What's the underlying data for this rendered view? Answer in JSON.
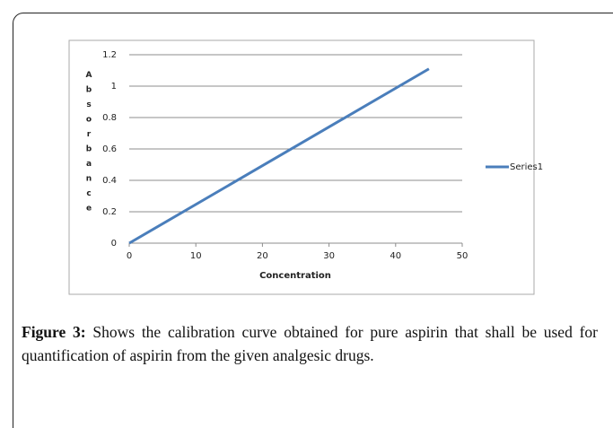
{
  "chart_data": {
    "type": "line",
    "x_label": "Concentration",
    "y_label": "Absorbance",
    "x": [
      0,
      45
    ],
    "series": [
      {
        "name": "Series1",
        "color": "#4a7ebb",
        "values": [
          0,
          1.11
        ]
      }
    ],
    "xlim": [
      0,
      50
    ],
    "xticks": [
      0,
      10,
      20,
      30,
      40,
      50
    ],
    "ylim": [
      0,
      1.2
    ],
    "yticks": [
      0,
      0.2,
      0.4,
      0.6,
      0.8,
      1,
      1.2
    ],
    "grid": true,
    "legend": "right"
  },
  "caption": {
    "label": "Figure 3:",
    "text": "Shows the calibration curve obtained for pure aspirin that shall be used for quantification of aspirin from the given analgesic drugs."
  }
}
